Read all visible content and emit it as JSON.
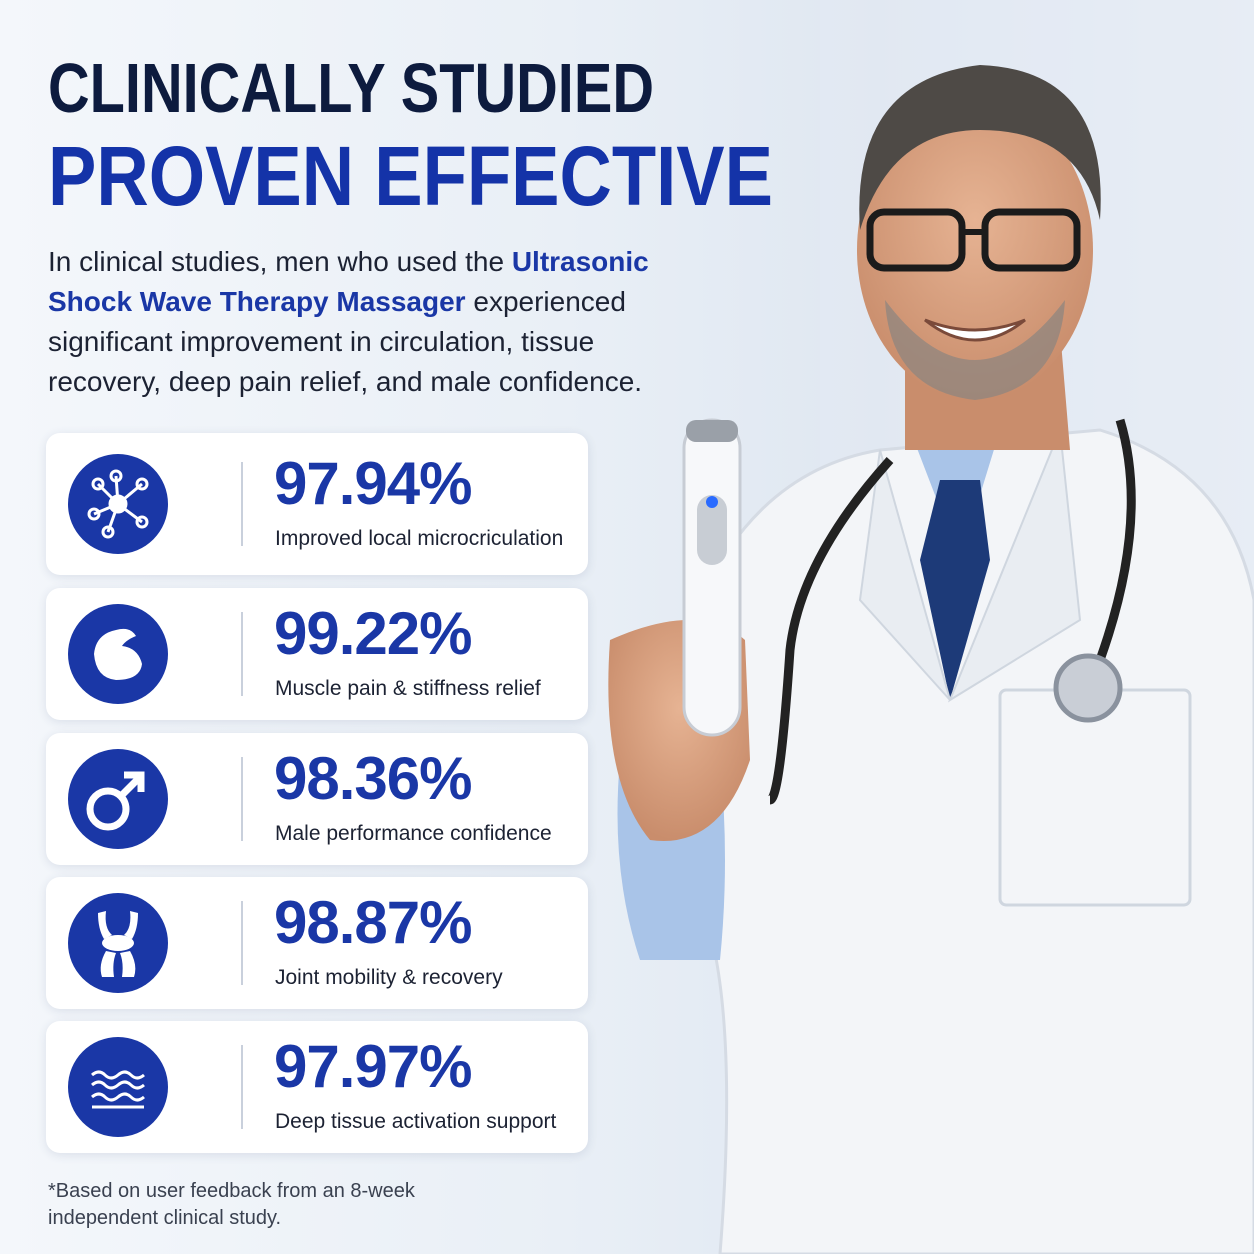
{
  "header": {
    "title_line1": "CLINICALLY STUDIED",
    "title_line2": "PROVEN EFFECTIVE"
  },
  "intro": {
    "before": "In clinical studies, men who used the ",
    "highlight": "Ultrasonic Shock Wave Therapy Massager",
    "after": " experienced significant improvement in circulation, tissue recovery, deep pain relief, and male confidence."
  },
  "stats": [
    {
      "value": "97.94%",
      "label": "Improved local microcriculation"
    },
    {
      "value": "99.22%",
      "label": "Muscle pain & stiffness relief"
    },
    {
      "value": "98.36%",
      "label": "Male performance confidence"
    },
    {
      "value": "98.87%",
      "label": "Joint mobility & recovery"
    },
    {
      "value": "97.97%",
      "label": "Deep tissue activation support"
    }
  ],
  "footnote": {
    "line1": "*Based on user feedback from an 8-week",
    "line2": "independent clinical study."
  }
}
